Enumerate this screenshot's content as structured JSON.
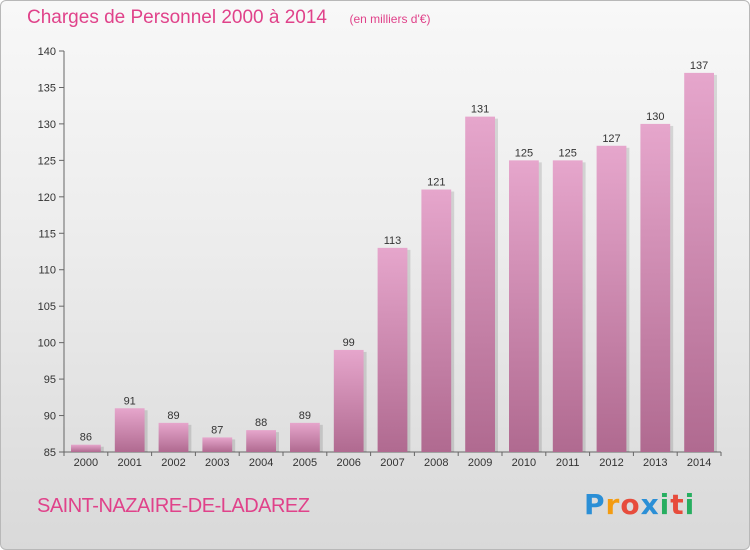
{
  "header": {
    "title": "Charges de Personnel 2000 à 2014",
    "subtitle": "(en milliers d'€)"
  },
  "commune": "SAINT-NAZAIRE-DE-LADAREZ",
  "logo": {
    "text": "Proxiti",
    "letters": [
      "P",
      "r",
      "o",
      "x",
      "i",
      "t",
      "i"
    ],
    "colors": [
      "#2b8fd6",
      "#f39c12",
      "#e74c3c",
      "#2b8fd6",
      "#27ae60",
      "#e74c3c",
      "#27ae60"
    ]
  },
  "colors": {
    "accent": "#e0428a",
    "bar_top": "#e6a6cc",
    "bar_bottom": "#b06a90"
  },
  "chart_data": {
    "type": "bar",
    "categories": [
      "2000",
      "2001",
      "2002",
      "2003",
      "2004",
      "2005",
      "2006",
      "2007",
      "2008",
      "2009",
      "2010",
      "2011",
      "2012",
      "2013",
      "2014"
    ],
    "values": [
      86,
      91,
      89,
      87,
      88,
      89,
      99,
      113,
      121,
      131,
      125,
      125,
      127,
      130,
      137
    ],
    "ylim": [
      85,
      140
    ],
    "yticks": [
      85,
      90,
      95,
      100,
      105,
      110,
      115,
      120,
      125,
      130,
      135,
      140
    ],
    "data_labels": true,
    "grid": false
  }
}
